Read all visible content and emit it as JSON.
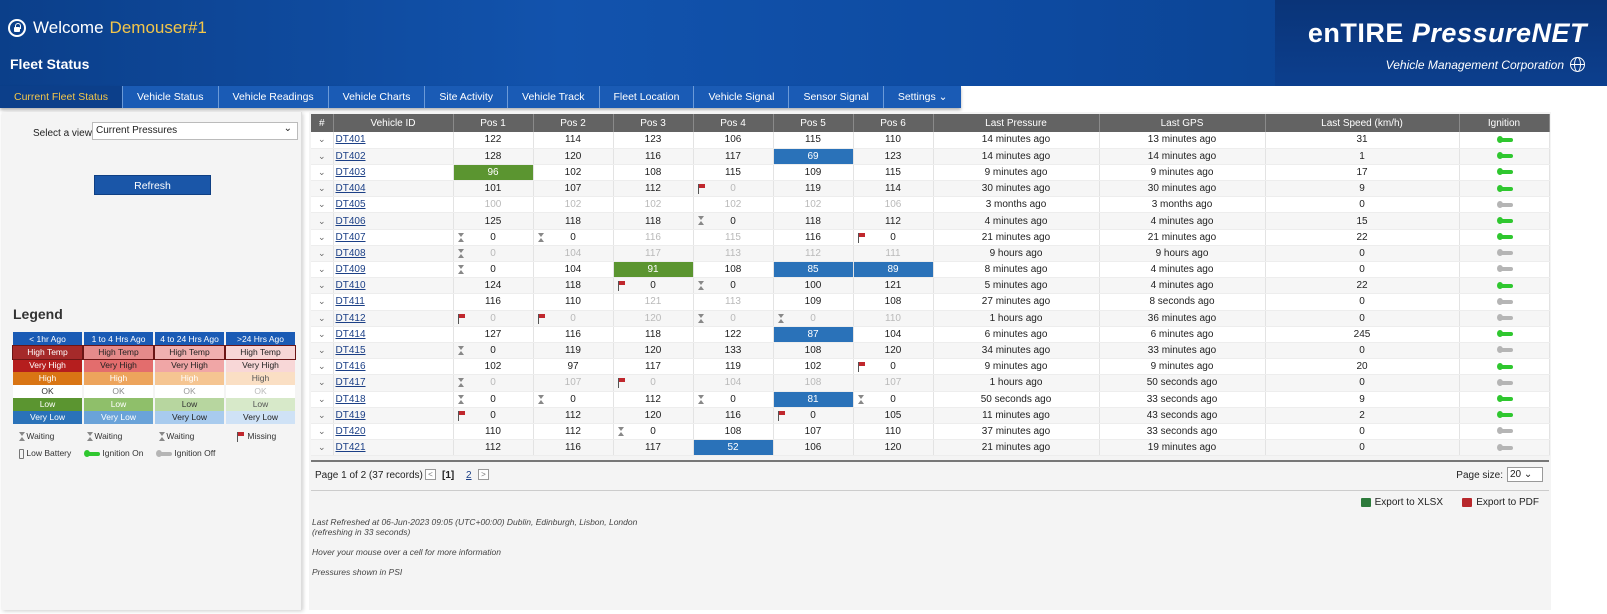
{
  "header": {
    "welcome": "Welcome",
    "user": "Demouser#1",
    "subtitle": "Fleet Status",
    "brand_a": "enTIRE ",
    "brand_b": "PressureNET",
    "corp": "Vehicle Management Corporation"
  },
  "nav": [
    {
      "label": "Current Fleet Status",
      "active": true
    },
    {
      "label": "Vehicle Status"
    },
    {
      "label": "Vehicle Readings"
    },
    {
      "label": "Vehicle Charts"
    },
    {
      "label": "Site Activity"
    },
    {
      "label": "Vehicle Track"
    },
    {
      "label": "Fleet Location"
    },
    {
      "label": "Vehicle Signal"
    },
    {
      "label": "Sensor Signal"
    },
    {
      "label": "Settings ⌄"
    }
  ],
  "view": {
    "label": "Select a view",
    "value": "Current Pressures",
    "refresh": "Refresh"
  },
  "legend": {
    "title": "Legend",
    "headers": [
      "< 1hr Ago",
      "1 to 4 Hrs Ago",
      "4 to 24 Hrs Ago",
      ">24 Hrs Ago"
    ],
    "rows": [
      {
        "label": "High Temp",
        "colors": [
          "#a52a2a",
          "#e58a8a",
          "#f0b0b0",
          "#f7d6d6"
        ],
        "text": [
          "#fff",
          "#222",
          "#222",
          "#222"
        ],
        "border": "#6b1515"
      },
      {
        "label": "Very High",
        "colors": [
          "#b51e1e",
          "#e36d6d",
          "#f0a6a6",
          "#f8d7d7"
        ],
        "text": [
          "#fff",
          "#222",
          "#222",
          "#222"
        ]
      },
      {
        "label": "High",
        "colors": [
          "#d97514",
          "#eda45c",
          "#f5c592",
          "#fadfc4"
        ],
        "text": [
          "#fff",
          "#fff",
          "#fff",
          "#555"
        ]
      },
      {
        "label": "OK",
        "colors": [
          "#ffffff",
          "#ffffff",
          "#ffffff",
          "#ffffff"
        ],
        "text": [
          "#333",
          "#888",
          "#999",
          "#bbb"
        ]
      },
      {
        "label": "Low",
        "colors": [
          "#5b9530",
          "#8fbf6a",
          "#b7d69f",
          "#d7e9c9"
        ],
        "text": [
          "#fff",
          "#fff",
          "#333",
          "#555"
        ]
      },
      {
        "label": "Very Low",
        "colors": [
          "#2a72b9",
          "#6aa3d9",
          "#a8cbee",
          "#cfe2f6"
        ],
        "text": [
          "#fff",
          "#fff",
          "#222",
          "#222"
        ]
      }
    ],
    "icons": {
      "waiting": "Waiting",
      "missing": "Missing",
      "low_battery": "Low Battery",
      "ignition_on": "Ignition On",
      "ignition_off": "Ignition Off"
    }
  },
  "columns": [
    "#",
    "Vehicle ID",
    "Pos 1",
    "Pos 2",
    "Pos 3",
    "Pos 4",
    "Pos 5",
    "Pos 6",
    "Last Pressure",
    "Last GPS",
    "Last Speed (km/h)",
    "Ignition"
  ],
  "rows": [
    {
      "id": "DT401",
      "pos": [
        "122",
        "114",
        "123",
        "106",
        "115",
        "110"
      ],
      "lp": "14 minutes ago",
      "gps": "13 minutes ago",
      "spd": "31",
      "ign": true
    },
    {
      "id": "DT402",
      "pos": [
        "128",
        "120",
        "116",
        "117",
        "69",
        "123"
      ],
      "fmt": [
        "",
        "",
        "",
        "",
        "blue",
        ""
      ],
      "lp": "14 minutes ago",
      "gps": "14 minutes ago",
      "spd": "1",
      "ign": true
    },
    {
      "id": "DT403",
      "pos": [
        "96",
        "102",
        "108",
        "115",
        "109",
        "115"
      ],
      "fmt": [
        "green",
        "",
        "",
        "",
        "",
        ""
      ],
      "lp": "9 minutes ago",
      "gps": "9 minutes ago",
      "spd": "17",
      "ign": true
    },
    {
      "id": "DT404",
      "pos": [
        "101",
        "107",
        "112",
        "0",
        "119",
        "114"
      ],
      "fmt": [
        "",
        "",
        "",
        "gray",
        "",
        ""
      ],
      "ic": [
        "",
        "",
        "",
        "flag",
        "",
        ""
      ],
      "lp": "30 minutes ago",
      "gps": "30 minutes ago",
      "spd": "9",
      "ign": true
    },
    {
      "id": "DT405",
      "pos": [
        "100",
        "102",
        "102",
        "102",
        "102",
        "106"
      ],
      "fmt": [
        "gray",
        "gray",
        "gray",
        "gray",
        "gray",
        "gray"
      ],
      "lp": "3 months ago",
      "gps": "3 months ago",
      "spd": "0",
      "ign": false
    },
    {
      "id": "DT406",
      "pos": [
        "125",
        "118",
        "118",
        "0",
        "118",
        "112"
      ],
      "ic": [
        "",
        "",
        "",
        "hg",
        "",
        ""
      ],
      "lp": "4 minutes ago",
      "gps": "4 minutes ago",
      "spd": "15",
      "ign": true
    },
    {
      "id": "DT407",
      "pos": [
        "0",
        "0",
        "116",
        "115",
        "116",
        "0"
      ],
      "fmt": [
        "",
        "",
        "gray",
        "gray",
        "",
        ""
      ],
      "ic": [
        "hg",
        "hg",
        "",
        "",
        "",
        "flag"
      ],
      "lp": "21 minutes ago",
      "gps": "21 minutes ago",
      "spd": "22",
      "ign": true
    },
    {
      "id": "DT408",
      "pos": [
        "0",
        "104",
        "117",
        "113",
        "112",
        "111"
      ],
      "fmt": [
        "gray",
        "gray",
        "gray",
        "gray",
        "gray",
        "gray"
      ],
      "ic": [
        "hg",
        "",
        "",
        "",
        "",
        ""
      ],
      "lp": "9 hours ago",
      "gps": "9 hours ago",
      "spd": "0",
      "ign": false
    },
    {
      "id": "DT409",
      "pos": [
        "0",
        "104",
        "91",
        "108",
        "85",
        "89"
      ],
      "fmt": [
        "",
        "",
        "green",
        "",
        "blue",
        "blue"
      ],
      "ic": [
        "hg",
        "",
        "",
        "",
        "",
        ""
      ],
      "lp": "8 minutes ago",
      "gps": "4 minutes ago",
      "spd": "0",
      "ign": false
    },
    {
      "id": "DT410",
      "pos": [
        "124",
        "118",
        "0",
        "0",
        "100",
        "121"
      ],
      "ic": [
        "",
        "",
        "flag",
        "hg",
        "",
        ""
      ],
      "lp": "5 minutes ago",
      "gps": "4 minutes ago",
      "spd": "22",
      "ign": true
    },
    {
      "id": "DT411",
      "pos": [
        "116",
        "110",
        "121",
        "113",
        "109",
        "108"
      ],
      "fmt": [
        "",
        "",
        "gray",
        "gray",
        "",
        ""
      ],
      "lp": "27 minutes ago",
      "gps": "8 seconds ago",
      "spd": "0",
      "ign": false
    },
    {
      "id": "DT412",
      "pos": [
        "0",
        "0",
        "120",
        "0",
        "0",
        "110"
      ],
      "fmt": [
        "gray",
        "gray",
        "gray",
        "gray",
        "gray",
        "gray"
      ],
      "ic": [
        "flag",
        "flag",
        "",
        "hg",
        "hg",
        ""
      ],
      "lp": "1 hours ago",
      "gps": "36 minutes ago",
      "spd": "0",
      "ign": false
    },
    {
      "id": "DT414",
      "pos": [
        "127",
        "116",
        "118",
        "122",
        "87",
        "104"
      ],
      "fmt": [
        "",
        "",
        "",
        "",
        "blue",
        ""
      ],
      "lp": "6 minutes ago",
      "gps": "6 minutes ago",
      "spd": "245",
      "ign": true
    },
    {
      "id": "DT415",
      "pos": [
        "0",
        "119",
        "120",
        "133",
        "108",
        "120"
      ],
      "ic": [
        "hg",
        "",
        "",
        "",
        "",
        ""
      ],
      "lp": "34 minutes ago",
      "gps": "33 minutes ago",
      "spd": "0",
      "ign": false
    },
    {
      "id": "DT416",
      "pos": [
        "102",
        "97",
        "117",
        "119",
        "102",
        "0"
      ],
      "ic": [
        "",
        "",
        "",
        "",
        "",
        "flag"
      ],
      "lp": "9 minutes ago",
      "gps": "9 minutes ago",
      "spd": "20",
      "ign": true
    },
    {
      "id": "DT417",
      "pos": [
        "0",
        "107",
        "0",
        "104",
        "108",
        "107"
      ],
      "fmt": [
        "gray",
        "gray",
        "gray",
        "gray",
        "gray",
        "gray"
      ],
      "ic": [
        "hg",
        "",
        "flag",
        "",
        "",
        ""
      ],
      "lp": "1 hours ago",
      "gps": "50 seconds ago",
      "spd": "0",
      "ign": false
    },
    {
      "id": "DT418",
      "pos": [
        "0",
        "0",
        "112",
        "0",
        "81",
        "0"
      ],
      "fmt": [
        "",
        "",
        "",
        "",
        "blue",
        ""
      ],
      "ic": [
        "hg",
        "hg",
        "",
        "hg",
        "",
        "hg"
      ],
      "lp": "50 seconds ago",
      "gps": "33 seconds ago",
      "spd": "9",
      "ign": true
    },
    {
      "id": "DT419",
      "pos": [
        "0",
        "112",
        "120",
        "116",
        "0",
        "105"
      ],
      "ic": [
        "flag",
        "",
        "",
        "",
        "flag",
        ""
      ],
      "lp": "11 minutes ago",
      "gps": "43 seconds ago",
      "spd": "2",
      "ign": true
    },
    {
      "id": "DT420",
      "pos": [
        "110",
        "112",
        "0",
        "108",
        "107",
        "110"
      ],
      "ic": [
        "",
        "",
        "hg",
        "",
        "",
        ""
      ],
      "lp": "37 minutes ago",
      "gps": "33 seconds ago",
      "spd": "0",
      "ign": false
    },
    {
      "id": "DT421",
      "pos": [
        "112",
        "116",
        "117",
        "52",
        "106",
        "120"
      ],
      "fmt": [
        "",
        "",
        "",
        "blue",
        "",
        ""
      ],
      "lp": "21 minutes ago",
      "gps": "19 minutes ago",
      "spd": "0",
      "ign": false
    }
  ],
  "pager": {
    "info": "Page 1 of 2 (37 records)",
    "p1": "[1]",
    "p2": "2",
    "size_label": "Page size:",
    "size": "20"
  },
  "exports": {
    "xlsx": "Export to XLSX",
    "pdf": "Export to PDF"
  },
  "notes": [
    "Last Refreshed at 06-Jun-2023 09:05 (UTC+00:00) Dublin, Edinburgh, Lisbon, London   (refreshing in 33 seconds)",
    "Hover your mouse over a cell for more information",
    "Pressures shown in PSI"
  ]
}
